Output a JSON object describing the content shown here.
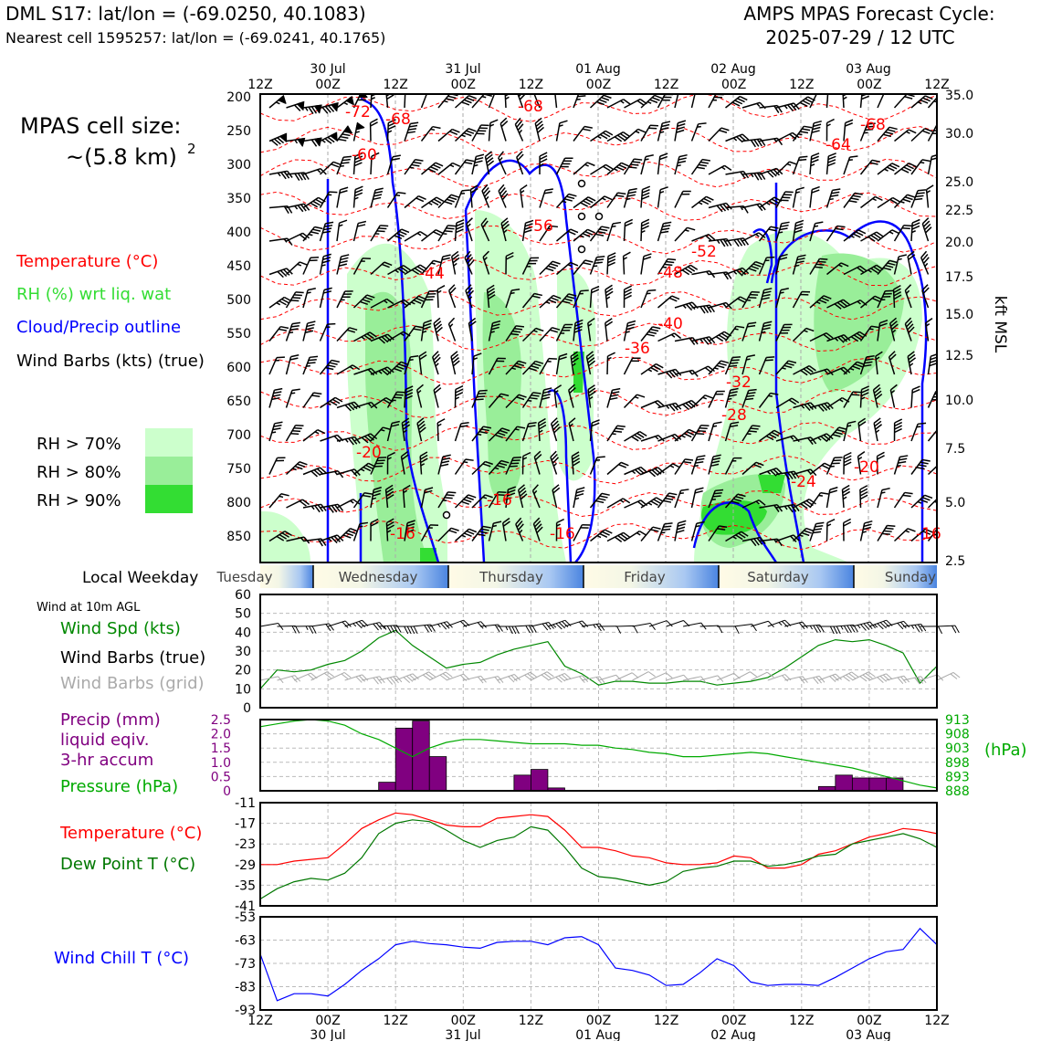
{
  "header": {
    "station_title": "DML S17: lat/lon = (-69.0250, 40.1083)",
    "nearest_cell": "Nearest cell 1595257: lat/lon = (-69.0241, 40.1765)",
    "cycle_title": "AMPS MPAS Forecast Cycle:",
    "cycle_date": "2025-07-29 / 12 UTC"
  },
  "side_labels": {
    "cell_size_line1": "MPAS cell size:",
    "cell_size_line2": "~(5.8 km)",
    "cell_size_sup": "2",
    "legend_temperature": "Temperature (°C)",
    "legend_rh": "RH (%) wrt liq. wat",
    "legend_cloud": "Cloud/Precip outline",
    "legend_wind": "Wind Barbs (kts) (true)",
    "rh70": "RH > 70%",
    "rh80": "RH > 80%",
    "rh90": "RH > 90%",
    "local_weekday": "Local Weekday",
    "wind_10m": "Wind at 10m AGL",
    "wind_spd": "Wind Spd (kts)",
    "wind_barbs_true": "Wind Barbs (true)",
    "wind_barbs_grid": "Wind Barbs (grid)",
    "precip_1": "Precip (mm)",
    "precip_2": "liquid eqiv.",
    "precip_3": "3-hr accum",
    "pressure": "Pressure (hPa)",
    "hpa_unit": "(hPa)",
    "temperature": "Temperature (°C)",
    "dewpoint": "Dew Point T (°C)",
    "windchill": "Wind Chill T (°C)",
    "kft_msl": "kft MSL"
  },
  "colors": {
    "temperature": "#ff0000",
    "rh_text": "#33dd33",
    "rh70": "#ccffcc",
    "rh80": "#99ee99",
    "rh90": "#33dd33",
    "cloud": "#0000ff",
    "precip": "#800080",
    "pressure": "#00aa00",
    "dewpoint": "#007700",
    "grid_barb": "#aaaaaa",
    "windchill": "#0000ff"
  },
  "time_axis": {
    "tick_labels": [
      "12Z",
      "00Z",
      "12Z",
      "00Z",
      "12Z",
      "00Z",
      "12Z",
      "00Z",
      "12Z",
      "00Z",
      "12Z"
    ],
    "date_labels": [
      "30 Jul",
      "31 Jul",
      "01 Aug",
      "02 Aug",
      "03 Aug"
    ],
    "weekdays": [
      "Tuesday",
      "Wednesday",
      "Thursday",
      "Friday",
      "Saturday",
      "Sunday"
    ]
  },
  "chart_data": [
    {
      "type": "heatmap",
      "title": "Vertical cross-section",
      "ylabel": "",
      "y_left_ticks": [
        200,
        250,
        300,
        350,
        400,
        450,
        500,
        550,
        600,
        650,
        700,
        750,
        800,
        850
      ],
      "y_right_ticks": [
        "35.0",
        "30.0",
        "25.0",
        "22.5",
        "20.0",
        "17.5",
        "15.0",
        "12.5",
        "10.0",
        "7.5",
        "5.0",
        "2.5"
      ],
      "temperature_contour_labels": [
        "-72",
        "-68",
        "-68",
        "-64",
        "-68",
        "-60",
        "-56",
        "-52",
        "-48",
        "-44",
        "-40",
        "-36",
        "-32",
        "-28",
        "-24",
        "-20",
        "-20",
        "-16",
        "-16",
        "-16",
        "-16"
      ]
    },
    {
      "type": "line",
      "title": "Wind Spd (kts)",
      "ylim": [
        0,
        60
      ],
      "yticks": [
        "0",
        "10",
        "20",
        "30",
        "40",
        "50",
        "60"
      ],
      "x_hours": [
        0,
        3,
        6,
        9,
        12,
        15,
        18,
        21,
        24,
        27,
        30,
        33,
        36,
        39,
        42,
        45,
        48,
        51,
        54,
        57,
        60,
        63,
        66,
        69,
        72,
        75,
        78,
        81,
        84,
        87,
        90,
        93,
        96,
        99,
        102,
        105,
        108,
        111,
        114,
        117,
        120
      ],
      "values": [
        10,
        20,
        19,
        20,
        23,
        25,
        30,
        37,
        41,
        33,
        27,
        21,
        23,
        24,
        28,
        31,
        33,
        35,
        22,
        18,
        12,
        14,
        14,
        13,
        13,
        14,
        14,
        12,
        13,
        14,
        16,
        21,
        27,
        33,
        36,
        35,
        36,
        33,
        29,
        13,
        22
      ]
    },
    {
      "type": "bar",
      "title": "Precip (mm) / Pressure (hPa)",
      "y_left_ticks": [
        "0",
        "0.5",
        "1.0",
        "1.5",
        "2.0",
        "2.5"
      ],
      "y_right_ticks": [
        "913",
        "908",
        "903",
        "898",
        "893",
        "888"
      ],
      "precip_bars": [
        {
          "start_hour": 21,
          "end_hour": 24,
          "value": 0.3
        },
        {
          "start_hour": 24,
          "end_hour": 27,
          "value": 2.2
        },
        {
          "start_hour": 27,
          "end_hour": 30,
          "value": 2.45
        },
        {
          "start_hour": 30,
          "end_hour": 33,
          "value": 1.2
        },
        {
          "start_hour": 45,
          "end_hour": 48,
          "value": 0.55
        },
        {
          "start_hour": 48,
          "end_hour": 51,
          "value": 0.75
        },
        {
          "start_hour": 51,
          "end_hour": 54,
          "value": 0.1
        },
        {
          "start_hour": 81,
          "end_hour": 84,
          "value": 0.02
        },
        {
          "start_hour": 99,
          "end_hour": 102,
          "value": 0.15
        },
        {
          "start_hour": 102,
          "end_hour": 105,
          "value": 0.55
        },
        {
          "start_hour": 105,
          "end_hour": 108,
          "value": 0.45
        },
        {
          "start_hour": 108,
          "end_hour": 111,
          "value": 0.45
        },
        {
          "start_hour": 111,
          "end_hour": 114,
          "value": 0.45
        }
      ],
      "pressure_hours": [
        0,
        3,
        6,
        9,
        12,
        15,
        18,
        21,
        24,
        27,
        30,
        33,
        36,
        39,
        42,
        45,
        48,
        51,
        54,
        57,
        60,
        63,
        66,
        69,
        72,
        75,
        78,
        81,
        84,
        87,
        90,
        93,
        96,
        99,
        102,
        105,
        108,
        111,
        114,
        117,
        120
      ],
      "pressure_values": [
        910.5,
        911.5,
        912.5,
        913,
        912.5,
        911,
        908,
        906,
        903,
        900,
        903,
        905,
        906,
        906,
        905.5,
        905,
        904.5,
        904.5,
        904.5,
        904,
        904,
        903,
        902.5,
        901.5,
        901,
        900,
        900,
        900.5,
        901,
        901.5,
        901,
        900,
        899,
        898,
        897,
        896,
        894.5,
        893,
        891.5,
        890,
        889
      ]
    },
    {
      "type": "line",
      "title": "Temperature / Dew Point T (°C)",
      "ylim": [
        -41,
        -11
      ],
      "yticks": [
        "-11",
        "-17",
        "-23",
        "-29",
        "-35",
        "-41"
      ],
      "x_hours": [
        0,
        3,
        6,
        9,
        12,
        15,
        18,
        21,
        24,
        27,
        30,
        33,
        36,
        39,
        42,
        45,
        48,
        51,
        54,
        57,
        60,
        63,
        66,
        69,
        72,
        75,
        78,
        81,
        84,
        87,
        90,
        93,
        96,
        99,
        102,
        105,
        108,
        111,
        114,
        117,
        120
      ],
      "series": [
        {
          "name": "Temperature (°C)",
          "values": [
            -29,
            -29,
            -28,
            -27.5,
            -27,
            -23,
            -18.5,
            -16,
            -14,
            -14.5,
            -16,
            -17.5,
            -18,
            -18,
            -15.5,
            -15,
            -14.5,
            -15,
            -19,
            -24,
            -24,
            -25,
            -26.5,
            -27,
            -28.5,
            -29,
            -29,
            -28.5,
            -26.5,
            -27,
            -30,
            -30,
            -29,
            -26,
            -25,
            -23,
            -21,
            -20,
            -18.5,
            -19,
            -20
          ]
        },
        {
          "name": "Dew Point T (°C)",
          "values": [
            -39,
            -36,
            -34,
            -33,
            -33.5,
            -31.5,
            -27,
            -20,
            -17,
            -16,
            -16.5,
            -19,
            -22,
            -24,
            -22,
            -21,
            -18,
            -19,
            -24,
            -30,
            -32.5,
            -33,
            -34,
            -35,
            -34,
            -31,
            -30,
            -29.5,
            -28,
            -28,
            -29.5,
            -29,
            -28,
            -26.5,
            -26,
            -23,
            -22,
            -21,
            -20,
            -21.5,
            -24
          ]
        }
      ]
    },
    {
      "type": "line",
      "title": "Wind Chill T (°C)",
      "ylim": [
        -93,
        -53
      ],
      "yticks": [
        "-53",
        "-63",
        "-73",
        "-83",
        "-93"
      ],
      "x_hours": [
        0,
        3,
        6,
        9,
        12,
        15,
        18,
        21,
        24,
        27,
        30,
        33,
        36,
        39,
        42,
        45,
        48,
        51,
        54,
        57,
        60,
        63,
        66,
        69,
        72,
        75,
        78,
        81,
        84,
        87,
        90,
        93,
        96,
        99,
        102,
        105,
        108,
        111,
        114,
        117,
        120
      ],
      "series": [
        {
          "name": "Wind Chill T (°C)",
          "values": [
            -69,
            -89,
            -86,
            -86,
            -87,
            -82,
            -76,
            -71,
            -65,
            -63.5,
            -64.5,
            -65,
            -66,
            -66.5,
            -64,
            -63.5,
            -63.5,
            -65,
            -62,
            -61.5,
            -65,
            -75,
            -76,
            -78,
            -82.5,
            -82,
            -77,
            -71,
            -74,
            -81,
            -82.5,
            -82,
            -82,
            -82.5,
            -79,
            -75,
            -71,
            -68,
            -67,
            -58,
            -65
          ]
        }
      ]
    }
  ]
}
